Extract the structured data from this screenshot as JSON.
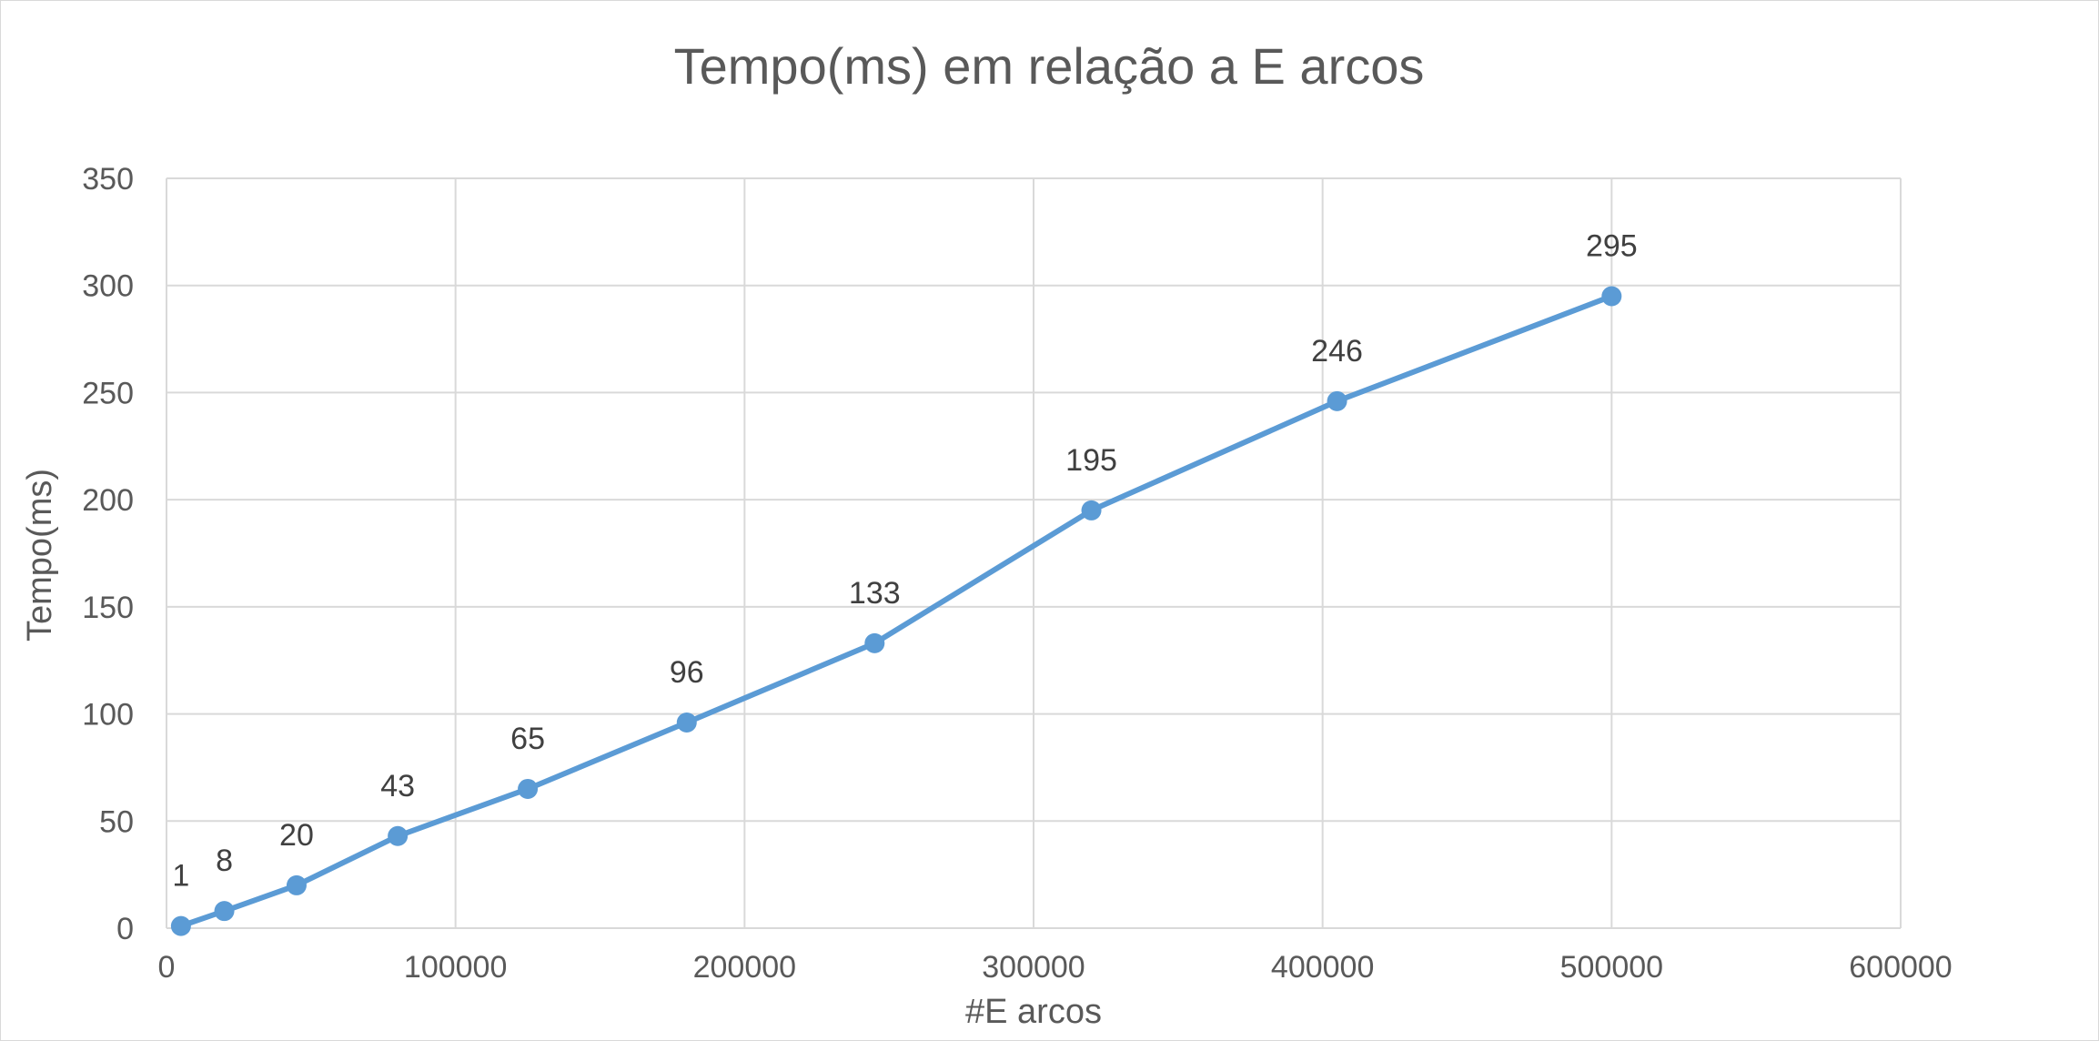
{
  "chart_data": {
    "type": "line",
    "title": "Tempo(ms) em relação a E arcos",
    "xlabel": "#E arcos",
    "ylabel": "Tempo(ms)",
    "xlim": [
      0,
      600000
    ],
    "ylim": [
      0,
      350
    ],
    "xticks": [
      0,
      100000,
      200000,
      300000,
      400000,
      500000,
      600000
    ],
    "yticks": [
      0,
      50,
      100,
      150,
      200,
      250,
      300,
      350
    ],
    "xtick_labels": [
      "0",
      "100000",
      "200000",
      "300000",
      "400000",
      "500000",
      "600000"
    ],
    "ytick_labels": [
      "0",
      "50",
      "100",
      "150",
      "200",
      "250",
      "300",
      "350"
    ],
    "grid": true,
    "legend": "none",
    "color": "#5b9bd5",
    "series": [
      {
        "x": [
          5000,
          20000,
          45000,
          80000,
          125000,
          180000,
          245000,
          320000,
          405000,
          500000
        ],
        "y": [
          1,
          8,
          20,
          43,
          65,
          96,
          133,
          195,
          246,
          295
        ],
        "labels": [
          "1",
          "8",
          "20",
          "43",
          "65",
          "96",
          "133",
          "195",
          "246",
          "295"
        ]
      }
    ]
  }
}
